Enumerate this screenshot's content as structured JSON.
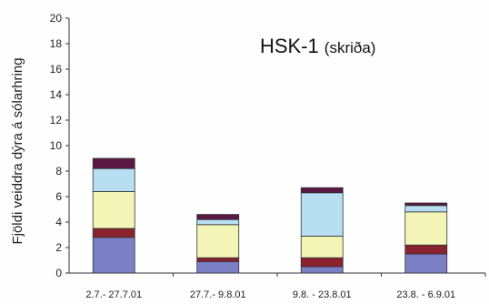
{
  "chart_data": {
    "type": "bar",
    "stacked": true,
    "title": "HSK-1",
    "subtitle": "(skriða)",
    "xlabel": "",
    "ylabel": "Fjöldi veiddra dýra á sólarhring",
    "ylim": [
      0,
      20
    ],
    "yticks": [
      0,
      2,
      4,
      6,
      8,
      10,
      12,
      14,
      16,
      18,
      20
    ],
    "grid": false,
    "categories": [
      "2.7.- 27.7.01",
      "27.7.- 9.8.01",
      "9.8. - 23.8.01",
      "23.8. - 6.9.01"
    ],
    "series": [
      {
        "color": "#7b7fc4",
        "values": [
          2.8,
          0.9,
          0.5,
          1.5
        ]
      },
      {
        "color": "#8b2230",
        "values": [
          0.7,
          0.3,
          0.7,
          0.7
        ]
      },
      {
        "color": "#f2f5b6",
        "values": [
          2.9,
          2.6,
          1.7,
          2.6
        ]
      },
      {
        "color": "#b8def2",
        "values": [
          1.8,
          0.4,
          3.4,
          0.5
        ]
      },
      {
        "color": "#5a1843",
        "values": [
          0.8,
          0.4,
          0.4,
          0.2
        ]
      }
    ]
  }
}
